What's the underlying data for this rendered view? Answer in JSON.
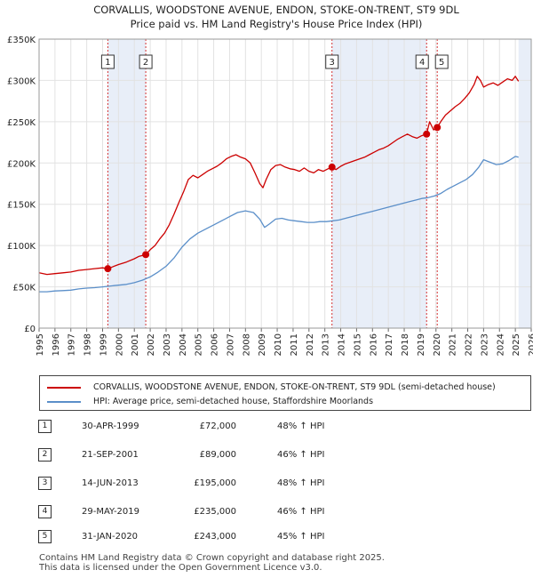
{
  "chart_data": {
    "type": "line",
    "title": "CORVALLIS, WOODSTONE AVENUE, ENDON, STOKE-ON-TRENT, ST9 9DL",
    "subtitle": "Price paid vs. HM Land Registry's House Price Index (HPI)",
    "xlabel": "",
    "ylabel": "",
    "xlim": [
      1995,
      2026
    ],
    "ylim": [
      0,
      350000
    ],
    "y_ticks": [
      {
        "value": 0,
        "label": "£0"
      },
      {
        "value": 50000,
        "label": "£50K"
      },
      {
        "value": 100000,
        "label": "£100K"
      },
      {
        "value": 150000,
        "label": "£150K"
      },
      {
        "value": 200000,
        "label": "£200K"
      },
      {
        "value": 250000,
        "label": "£250K"
      },
      {
        "value": 300000,
        "label": "£300K"
      },
      {
        "value": 350000,
        "label": "£350K"
      }
    ],
    "x_ticks": [
      "1995",
      "1996",
      "1997",
      "1998",
      "1999",
      "2000",
      "2001",
      "2002",
      "2003",
      "2004",
      "2005",
      "2006",
      "2007",
      "2008",
      "2009",
      "2010",
      "2011",
      "2012",
      "2013",
      "2014",
      "2015",
      "2016",
      "2017",
      "2018",
      "2019",
      "2020",
      "2021",
      "2022",
      "2023",
      "2024",
      "2025",
      "2026"
    ],
    "grid": true,
    "series": [
      {
        "name": "CORVALLIS, WOODSTONE AVENUE, ENDON, STOKE-ON-TRENT, ST9 9DL (semi-detached house)",
        "color": "#cc0000",
        "x": [
          1995.0,
          1995.5,
          1996.0,
          1996.5,
          1997.0,
          1997.5,
          1998.0,
          1998.5,
          1999.0,
          1999.33,
          1999.6,
          2000.0,
          2000.5,
          2001.0,
          2001.3,
          2001.72,
          2002.0,
          2002.3,
          2002.6,
          2002.9,
          2003.2,
          2003.5,
          2003.8,
          2004.1,
          2004.4,
          2004.7,
          2005.0,
          2005.3,
          2005.6,
          2005.9,
          2006.2,
          2006.5,
          2006.8,
          2007.1,
          2007.4,
          2007.7,
          2008.0,
          2008.3,
          2008.6,
          2008.9,
          2009.1,
          2009.3,
          2009.6,
          2009.9,
          2010.2,
          2010.5,
          2010.8,
          2011.1,
          2011.4,
          2011.7,
          2012.0,
          2012.3,
          2012.6,
          2012.9,
          2013.2,
          2013.45,
          2013.7,
          2014.0,
          2014.3,
          2014.6,
          2014.9,
          2015.2,
          2015.5,
          2015.8,
          2016.1,
          2016.4,
          2016.7,
          2017.0,
          2017.3,
          2017.6,
          2017.9,
          2018.2,
          2018.5,
          2018.8,
          2019.1,
          2019.41,
          2019.6,
          2019.85,
          2020.08,
          2020.3,
          2020.6,
          2020.9,
          2021.2,
          2021.5,
          2021.8,
          2022.1,
          2022.4,
          2022.6,
          2022.8,
          2023.0,
          2023.3,
          2023.6,
          2023.9,
          2024.2,
          2024.5,
          2024.8,
          2025.0,
          2025.2
        ],
        "values": [
          67000,
          65000,
          66000,
          67000,
          68000,
          70000,
          71000,
          72000,
          73000,
          72000,
          74000,
          77000,
          80000,
          84000,
          87000,
          89000,
          95000,
          100000,
          108000,
          115000,
          125000,
          138000,
          152000,
          165000,
          180000,
          185000,
          182000,
          186000,
          190000,
          193000,
          196000,
          200000,
          205000,
          208000,
          210000,
          207000,
          205000,
          200000,
          188000,
          175000,
          170000,
          180000,
          192000,
          197000,
          198000,
          195000,
          193000,
          192000,
          190000,
          194000,
          190000,
          188000,
          192000,
          190000,
          193000,
          195000,
          192000,
          196000,
          199000,
          201000,
          203000,
          205000,
          207000,
          210000,
          213000,
          216000,
          218000,
          221000,
          225000,
          229000,
          232000,
          235000,
          232000,
          230000,
          233000,
          235000,
          250000,
          240000,
          243000,
          250000,
          258000,
          263000,
          268000,
          272000,
          278000,
          285000,
          295000,
          305000,
          300000,
          292000,
          295000,
          297000,
          294000,
          298000,
          302000,
          300000,
          305000,
          299000
        ]
      },
      {
        "name": "HPI: Average price, semi-detached house, Staffordshire Moorlands",
        "color": "#5b8fc9",
        "x": [
          1995.0,
          1995.5,
          1996.0,
          1996.5,
          1997.0,
          1997.5,
          1998.0,
          1998.5,
          1999.0,
          1999.5,
          2000.0,
          2000.5,
          2001.0,
          2001.5,
          2002.0,
          2002.5,
          2003.0,
          2003.5,
          2004.0,
          2004.5,
          2005.0,
          2005.5,
          2006.0,
          2006.5,
          2007.0,
          2007.5,
          2008.0,
          2008.5,
          2008.9,
          2009.2,
          2009.5,
          2009.9,
          2010.3,
          2010.7,
          2011.1,
          2011.5,
          2011.9,
          2012.3,
          2012.7,
          2013.1,
          2013.5,
          2013.9,
          2014.3,
          2014.7,
          2015.1,
          2015.5,
          2015.9,
          2016.3,
          2016.7,
          2017.1,
          2017.5,
          2017.9,
          2018.3,
          2018.7,
          2019.1,
          2019.5,
          2019.9,
          2020.3,
          2020.7,
          2021.1,
          2021.5,
          2021.9,
          2022.3,
          2022.7,
          2023.0,
          2023.4,
          2023.8,
          2024.2,
          2024.6,
          2025.0,
          2025.2
        ],
        "values": [
          44000,
          44000,
          45000,
          45500,
          46000,
          47500,
          48500,
          49000,
          50000,
          51000,
          52000,
          53000,
          55000,
          58000,
          62000,
          68000,
          75000,
          85000,
          98000,
          108000,
          115000,
          120000,
          125000,
          130000,
          135000,
          140000,
          142000,
          140000,
          132000,
          122000,
          126000,
          132000,
          133000,
          131000,
          130000,
          129000,
          128000,
          128000,
          129000,
          129000,
          130000,
          131000,
          133000,
          135000,
          137000,
          139000,
          141000,
          143000,
          145000,
          147000,
          149000,
          151000,
          153000,
          155000,
          157000,
          158000,
          160000,
          163000,
          168000,
          172000,
          176000,
          180000,
          186000,
          195000,
          204000,
          201000,
          198000,
          199000,
          203000,
          208000,
          207000
        ]
      }
    ],
    "sales": [
      {
        "id": "1",
        "x": 1999.33,
        "value": 72000
      },
      {
        "id": "2",
        "x": 2001.72,
        "value": 89000
      },
      {
        "id": "3",
        "x": 2013.45,
        "value": 195000
      },
      {
        "id": "4",
        "x": 2019.41,
        "value": 235000
      },
      {
        "id": "5",
        "x": 2020.08,
        "value": 243000
      }
    ],
    "shaded_ranges": [
      [
        1999.33,
        2001.72
      ],
      [
        2013.45,
        2019.41
      ],
      [
        2025.2,
        2026
      ]
    ]
  },
  "legend": {
    "property_label": "CORVALLIS, WOODSTONE AVENUE, ENDON, STOKE-ON-TRENT, ST9 9DL (semi-detached house)",
    "hpi_label": "HPI: Average price, semi-detached house, Staffordshire Moorlands",
    "property_color": "#cc0000",
    "hpi_color": "#5b8fc9"
  },
  "sales_table": [
    {
      "num": "1",
      "date": "30-APR-1999",
      "price": "£72,000",
      "hpi": "48% ↑ HPI"
    },
    {
      "num": "2",
      "date": "21-SEP-2001",
      "price": "£89,000",
      "hpi": "46% ↑ HPI"
    },
    {
      "num": "3",
      "date": "14-JUN-2013",
      "price": "£195,000",
      "hpi": "48% ↑ HPI"
    },
    {
      "num": "4",
      "date": "29-MAY-2019",
      "price": "£235,000",
      "hpi": "46% ↑ HPI"
    },
    {
      "num": "5",
      "date": "31-JAN-2020",
      "price": "£243,000",
      "hpi": "45% ↑ HPI"
    }
  ],
  "footer": {
    "line1": "Contains HM Land Registry data © Crown copyright and database right 2025.",
    "line2": "This data is licensed under the Open Government Licence v3.0."
  }
}
